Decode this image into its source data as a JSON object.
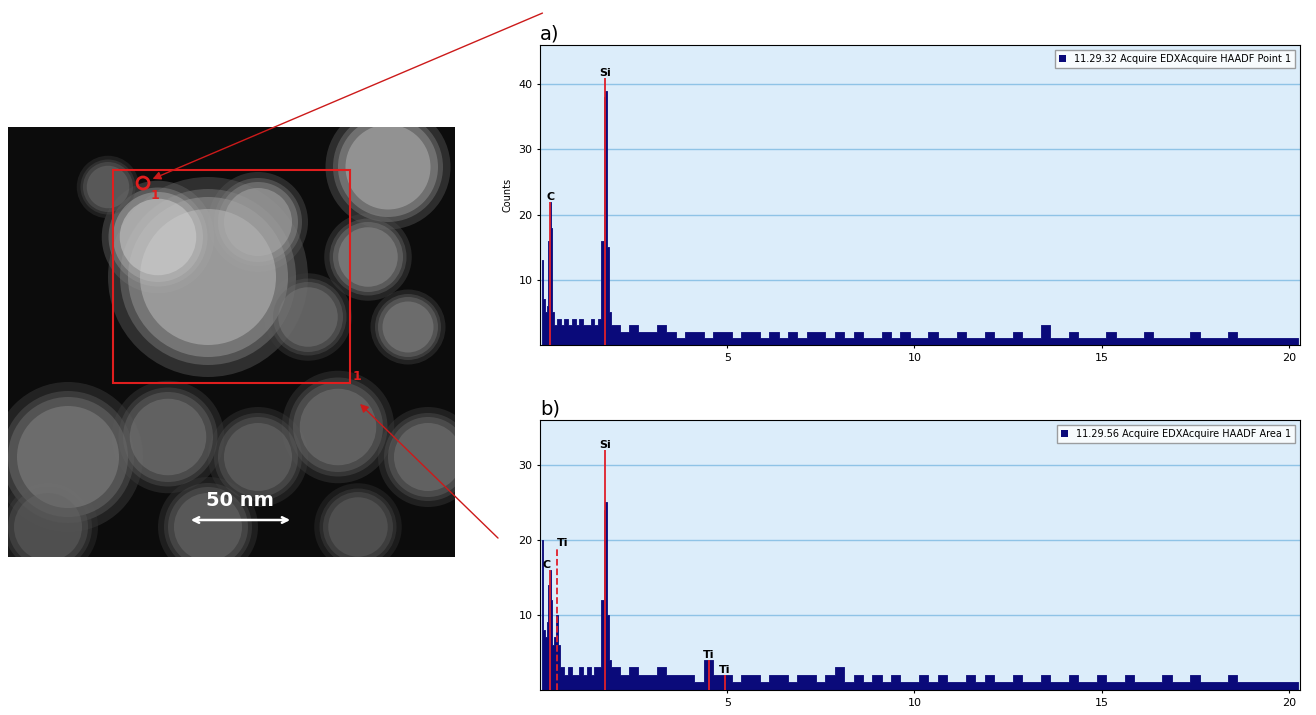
{
  "image": {
    "scale_bar": "50 nm",
    "point_label": "1",
    "area_label": "1"
  },
  "chart_data": [
    {
      "type": "spectrum",
      "title": "a)",
      "y_label": "Counts",
      "series": [
        {
          "name": "11.29.32 Acquire EDXAcquire HAADF Point 1",
          "color": "#0a0a7a",
          "x": [
            0.05,
            0.1,
            0.15,
            0.2,
            0.25,
            0.28,
            0.31,
            0.35,
            0.4,
            0.5,
            0.6,
            0.7,
            0.8,
            0.9,
            1.0,
            1.1,
            1.2,
            1.3,
            1.4,
            1.5,
            1.6,
            1.68,
            1.72,
            1.76,
            1.8,
            1.86,
            1.95,
            2.0,
            2.25,
            2.5,
            2.75,
            3.0,
            3.25,
            3.5,
            3.75,
            4.0,
            4.25,
            4.5,
            4.75,
            5.0,
            5.25,
            5.5,
            5.75,
            6.0,
            6.25,
            6.5,
            6.75,
            7.0,
            7.25,
            7.5,
            7.75,
            8.0,
            8.25,
            8.5,
            8.75,
            9.0,
            9.25,
            9.5,
            9.75,
            10.0,
            10.25,
            10.5,
            10.75,
            11.0,
            11.25,
            11.5,
            11.75,
            12.0,
            12.25,
            12.5,
            12.75,
            13.0,
            13.25,
            13.5,
            13.75,
            14.0,
            14.25,
            14.5,
            14.75,
            15.0,
            15.25,
            15.5,
            15.75,
            16.0,
            16.25,
            16.5,
            16.75,
            17.0,
            17.25,
            17.5,
            17.75,
            18.0,
            18.25,
            18.5,
            18.75,
            19.0,
            19.25,
            19.5,
            19.75,
            20.0,
            20.25
          ],
          "values": [
            13,
            7,
            5,
            6,
            16,
            22,
            18,
            5,
            3,
            4,
            3,
            4,
            3,
            4,
            3,
            4,
            3,
            3,
            4,
            3,
            4,
            16,
            38,
            39,
            15,
            5,
            3,
            3,
            2,
            3,
            2,
            2,
            3,
            2,
            1,
            2,
            2,
            1,
            2,
            2,
            1,
            2,
            2,
            1,
            2,
            1,
            2,
            1,
            2,
            2,
            1,
            2,
            1,
            2,
            1,
            1,
            2,
            1,
            2,
            1,
            1,
            2,
            1,
            1,
            2,
            1,
            1,
            2,
            1,
            1,
            2,
            1,
            1,
            3,
            1,
            1,
            2,
            1,
            1,
            1,
            2,
            1,
            1,
            1,
            2,
            1,
            1,
            1,
            1,
            2,
            1,
            1,
            1,
            2,
            1,
            1,
            1,
            1,
            1,
            1,
            1
          ]
        }
      ],
      "peaks": [
        {
          "label": "C",
          "x": 0.277,
          "height": 22,
          "line_style": "solid"
        },
        {
          "label": "Si",
          "x": 1.74,
          "height": 41,
          "line_style": "solid"
        }
      ],
      "peak_color": "#e0202a",
      "xlim": [
        0,
        20.3
      ],
      "xticks": [
        5,
        10,
        15,
        20
      ],
      "ylim": [
        0,
        46
      ],
      "yticks": [
        10,
        20,
        30,
        40
      ],
      "grid": "y",
      "legend": "upper right"
    },
    {
      "type": "spectrum",
      "title": "b)",
      "series": [
        {
          "name": "11.29.56 Acquire EDXAcquire HAADF Area 1",
          "color": "#0a0a7a",
          "x": [
            0.05,
            0.1,
            0.15,
            0.2,
            0.25,
            0.28,
            0.31,
            0.35,
            0.4,
            0.45,
            0.5,
            0.55,
            0.6,
            0.7,
            0.8,
            0.9,
            1.0,
            1.1,
            1.2,
            1.3,
            1.4,
            1.5,
            1.6,
            1.68,
            1.72,
            1.76,
            1.8,
            1.86,
            1.95,
            2.0,
            2.25,
            2.5,
            2.75,
            3.0,
            3.25,
            3.5,
            3.75,
            4.0,
            4.25,
            4.5,
            4.75,
            5.0,
            5.25,
            5.5,
            5.75,
            6.0,
            6.25,
            6.5,
            6.75,
            7.0,
            7.25,
            7.5,
            7.75,
            8.0,
            8.25,
            8.5,
            8.75,
            9.0,
            9.25,
            9.5,
            9.75,
            10.0,
            10.25,
            10.5,
            10.75,
            11.0,
            11.25,
            11.5,
            11.75,
            12.0,
            12.25,
            12.5,
            12.75,
            13.0,
            13.25,
            13.5,
            13.75,
            14.0,
            14.25,
            14.5,
            14.75,
            15.0,
            15.25,
            15.5,
            15.75,
            16.0,
            16.25,
            16.5,
            16.75,
            17.0,
            17.25,
            17.5,
            17.75,
            18.0,
            18.25,
            18.5,
            18.75,
            19.0,
            19.25,
            19.5,
            19.75,
            20.0,
            20.25
          ],
          "values": [
            20,
            8,
            7,
            9,
            14,
            16,
            12,
            6,
            7,
            10,
            6,
            3,
            3,
            2,
            3,
            2,
            2,
            3,
            2,
            3,
            2,
            3,
            3,
            12,
            24,
            25,
            10,
            4,
            3,
            3,
            2,
            3,
            2,
            2,
            3,
            2,
            2,
            2,
            1,
            4,
            2,
            2,
            1,
            2,
            2,
            1,
            2,
            2,
            1,
            2,
            2,
            1,
            2,
            3,
            1,
            2,
            1,
            2,
            1,
            2,
            1,
            1,
            2,
            1,
            2,
            1,
            1,
            2,
            1,
            2,
            1,
            1,
            2,
            1,
            1,
            2,
            1,
            1,
            2,
            1,
            1,
            2,
            1,
            1,
            2,
            1,
            1,
            1,
            2,
            1,
            1,
            2,
            1,
            1,
            1,
            2,
            1,
            1,
            1,
            1,
            1,
            1,
            1
          ]
        }
      ],
      "peaks": [
        {
          "label": "C",
          "x": 0.277,
          "height": 16,
          "line_style": "solid"
        },
        {
          "label": "Ti",
          "x": 0.452,
          "height": 19,
          "line_style": "dashed"
        },
        {
          "label": "Si",
          "x": 1.74,
          "height": 32,
          "line_style": "solid"
        },
        {
          "label": "Ti",
          "x": 4.51,
          "height": 4,
          "line_style": "solid"
        },
        {
          "label": "Ti",
          "x": 4.93,
          "height": 2,
          "line_style": "solid"
        }
      ],
      "peak_color": "#e0202a",
      "xlim": [
        0,
        20.3
      ],
      "xticks": [
        5,
        10,
        15,
        20
      ],
      "ylim": [
        0,
        36
      ],
      "yticks": [
        10,
        20,
        30
      ],
      "grid": "y",
      "legend": "upper right"
    }
  ]
}
